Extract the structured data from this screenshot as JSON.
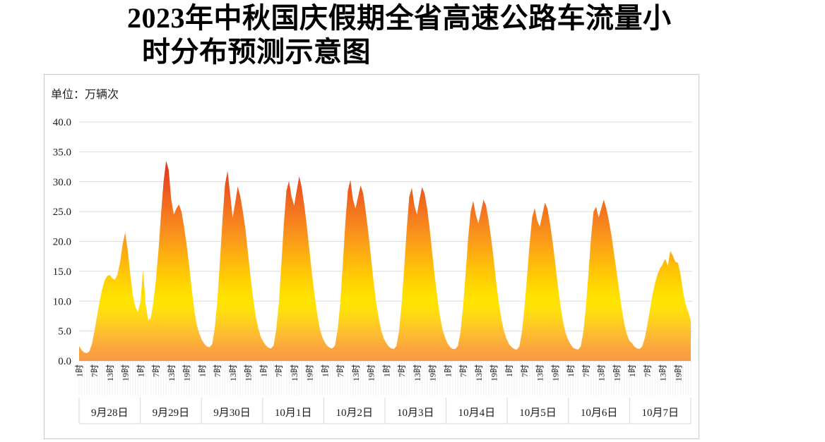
{
  "title": {
    "line1": "2023年中秋国庆假期全省高速公路车流量小",
    "line2": "时分布预测示意图",
    "full": "2023年中秋国庆假期全省高速公路车流量小时分布预测示意图"
  },
  "chart": {
    "unit_label": "单位：万辆次",
    "y_axis": {
      "min": 0,
      "max": 40,
      "step": 5,
      "tick_labels": [
        "0.0",
        "5.0",
        "10.0",
        "15.0",
        "20.0",
        "25.0",
        "30.0",
        "35.0",
        "40.0"
      ]
    },
    "hours_labeled": [
      1,
      7,
      13,
      19
    ],
    "hour_tick_labels": [
      "1时",
      "7时",
      "13时",
      "19时"
    ],
    "colors": {
      "gridline": "#dcdcdc",
      "hour_tick": "#ececec",
      "day_separator": "#d9d9d9",
      "axis_text": "#1a1a1a",
      "panel_border": "#c9c9c9",
      "gradient_stops": [
        [
          0.0,
          "#d93418"
        ],
        [
          0.115,
          "#e84e1e"
        ],
        [
          0.2,
          "#f0661f"
        ],
        [
          0.29,
          "#f57d1f"
        ],
        [
          0.38,
          "#fa951c"
        ],
        [
          0.47,
          "#fdae12"
        ],
        [
          0.56,
          "#ffc606"
        ],
        [
          0.645,
          "#ffda00"
        ],
        [
          0.7,
          "#ffe400"
        ],
        [
          0.76,
          "#ffdd10"
        ],
        [
          0.82,
          "#ffcb24"
        ],
        [
          0.88,
          "#fdb834"
        ],
        [
          0.94,
          "#faa53e"
        ],
        [
          1.0,
          "#f79a45"
        ]
      ]
    }
  },
  "chart_data": {
    "type": "area",
    "title": "2023年中秋国庆假期全省高速公路车流量小时分布预测示意图",
    "ylabel": "单位：万辆次",
    "y_unit": "万辆次",
    "ylim": [
      0,
      40
    ],
    "x_unit": "每日1时—24时逐小时",
    "legend": "none",
    "grid": "horizontal",
    "days": [
      {
        "date": "9月28日",
        "values": [
          2.5,
          1.8,
          1.4,
          1.3,
          1.6,
          2.8,
          5.0,
          7.5,
          10.0,
          12.0,
          13.5,
          14.2,
          14.4,
          13.8,
          13.6,
          14.5,
          16.5,
          19.5,
          21.5,
          18.5,
          14.5,
          11.0,
          9.0,
          8.2
        ]
      },
      {
        "date": "9月29日",
        "values": [
          10.0,
          15.2,
          9.5,
          6.8,
          7.2,
          9.8,
          13.5,
          18.5,
          24.5,
          30.0,
          33.5,
          32.0,
          27.0,
          24.5,
          25.5,
          26.2,
          25.0,
          22.5,
          19.5,
          16.0,
          12.0,
          8.5,
          6.0,
          4.5
        ]
      },
      {
        "date": "9月30日",
        "values": [
          3.5,
          2.8,
          2.4,
          2.3,
          2.8,
          5.5,
          10.0,
          16.5,
          23.5,
          29.5,
          31.8,
          28.0,
          24.0,
          26.5,
          29.2,
          27.5,
          25.0,
          22.0,
          18.0,
          14.0,
          10.5,
          7.5,
          5.5,
          4.0
        ]
      },
      {
        "date": "10月1日",
        "values": [
          3.2,
          2.6,
          2.2,
          2.1,
          2.6,
          5.2,
          9.5,
          16.0,
          23.0,
          28.5,
          30.1,
          27.5,
          26.0,
          28.5,
          30.9,
          29.0,
          26.0,
          22.5,
          18.5,
          14.5,
          11.0,
          8.0,
          5.5,
          4.0
        ]
      },
      {
        "date": "10月2日",
        "values": [
          3.1,
          2.5,
          2.2,
          2.1,
          2.6,
          5.2,
          9.5,
          16.0,
          23.0,
          28.5,
          30.3,
          27.0,
          25.5,
          27.5,
          29.4,
          28.0,
          25.0,
          21.5,
          17.5,
          13.5,
          10.0,
          7.3,
          5.2,
          3.8
        ]
      },
      {
        "date": "10月3日",
        "values": [
          3.0,
          2.4,
          2.1,
          2.0,
          2.5,
          5.0,
          9.5,
          15.5,
          22.0,
          27.5,
          29.0,
          26.0,
          24.5,
          27.0,
          29.1,
          28.0,
          25.5,
          22.0,
          18.0,
          14.0,
          10.5,
          7.5,
          5.3,
          3.9
        ]
      },
      {
        "date": "10月4日",
        "values": [
          2.9,
          2.3,
          2.0,
          2.0,
          2.5,
          4.8,
          9.0,
          14.5,
          20.5,
          25.0,
          26.8,
          24.5,
          23.0,
          25.0,
          27.0,
          26.0,
          23.5,
          20.5,
          17.0,
          13.0,
          9.8,
          7.0,
          5.0,
          3.7
        ]
      },
      {
        "date": "10月5日",
        "values": [
          2.8,
          2.3,
          2.0,
          1.9,
          2.4,
          4.8,
          9.0,
          14.0,
          19.5,
          24.0,
          25.6,
          23.5,
          22.5,
          24.5,
          26.5,
          25.5,
          23.0,
          20.0,
          16.5,
          12.8,
          9.5,
          6.8,
          4.8,
          3.6
        ]
      },
      {
        "date": "10月6日",
        "values": [
          2.8,
          2.2,
          2.0,
          1.9,
          2.4,
          4.8,
          9.0,
          14.5,
          20.5,
          25.0,
          25.8,
          24.0,
          25.5,
          27.0,
          25.5,
          23.5,
          21.0,
          18.0,
          15.0,
          11.8,
          8.8,
          6.3,
          4.5,
          3.4
        ]
      },
      {
        "date": "10月7日",
        "values": [
          3.0,
          2.4,
          2.1,
          2.0,
          2.4,
          3.8,
          6.0,
          8.5,
          11.0,
          13.0,
          14.5,
          15.5,
          16.2,
          17.1,
          15.9,
          18.4,
          17.6,
          16.6,
          16.4,
          14.5,
          11.5,
          9.5,
          8.2,
          6.8
        ]
      }
    ]
  }
}
